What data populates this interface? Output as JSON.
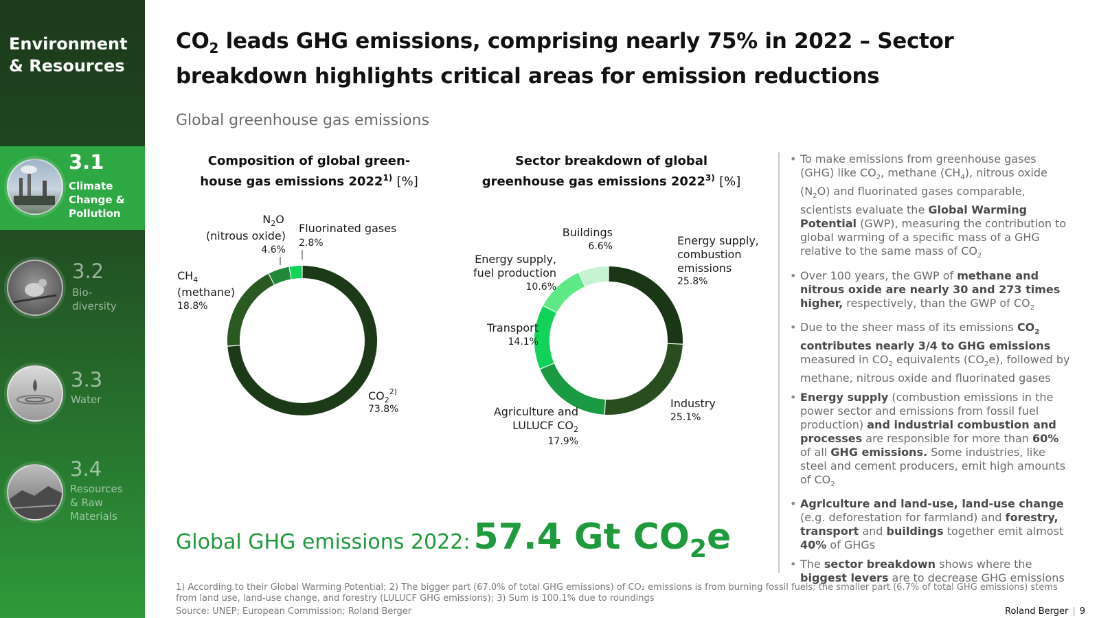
{
  "sidebar": {
    "title": "Environment\n& Resources",
    "items": [
      {
        "num": "3.1",
        "label": "Climate\nChange &\nPollution",
        "active": true
      },
      {
        "num": "3.2",
        "label": "Bio-\ndiversity",
        "active": false
      },
      {
        "num": "3.3",
        "label": "Water",
        "active": false
      },
      {
        "num": "3.4",
        "label": "Resources\n& Raw\nMaterials",
        "active": false
      }
    ]
  },
  "headline": {
    "part1": "CO",
    "sub": "2",
    "part2": " leads GHG emissions, comprising nearly 75% in 2022 – Sector breakdown highlights critical areas for emission reductions"
  },
  "subtitle": "Global greenhouse gas emissions",
  "chart_data": [
    {
      "type": "pie",
      "title_line1": "Composition of global green-",
      "title_line2": "house gas emissions 2022",
      "title_sup": "1)",
      "unit": "[%]",
      "categories": [
        "CO2",
        "CH4 (methane)",
        "N2O (nitrous oxide)",
        "Fluorinated gases"
      ],
      "values": [
        73.8,
        18.8,
        4.6,
        2.8
      ],
      "colors": [
        "#1c3a17",
        "#2a5a22",
        "#22883a",
        "#12d35a"
      ],
      "labels": {
        "co2": {
          "name": "CO",
          "sub": "2",
          "sup": "2)",
          "value": "73.8%"
        },
        "ch4": {
          "name": "CH",
          "sub": "4",
          "paren": "(methane)",
          "value": "18.8%"
        },
        "n2o": {
          "name1": "N",
          "sub": "2",
          "name2": "O",
          "paren": "(nitrous oxide)",
          "value": "4.6%"
        },
        "fgas": {
          "name": "Fluorinated gases",
          "value": "2.8%"
        }
      }
    },
    {
      "type": "pie",
      "title_line1": "Sector breakdown of global",
      "title_line2": "greenhouse gas emissions 2022",
      "title_sup": "3)",
      "unit": "[%]",
      "categories": [
        "Energy supply, combustion emissions",
        "Industry",
        "Agriculture and LULUCF CO2",
        "Transport",
        "Energy supply, fuel production",
        "Buildings"
      ],
      "values": [
        25.8,
        25.1,
        17.9,
        14.1,
        10.6,
        6.6
      ],
      "colors": [
        "#1a3616",
        "#2a4d1f",
        "#1a9a42",
        "#12d35a",
        "#5ee886",
        "#c7f3d4"
      ],
      "labels": {
        "energy_comb": {
          "line1": "Energy supply,",
          "line2": "combustion",
          "line3": "emissions",
          "value": "25.8%"
        },
        "industry": {
          "name": "Industry",
          "value": "25.1%"
        },
        "agri": {
          "line1": "Agriculture and",
          "line2a": "LULUCF CO",
          "sub": "2",
          "value": "17.9%"
        },
        "transport": {
          "name": "Transport",
          "value": "14.1%"
        },
        "energy_fuel": {
          "line1": "Energy supply,",
          "line2": "fuel production",
          "value": "10.6%"
        },
        "buildings": {
          "name": "Buildings",
          "value": "6.6%"
        }
      }
    }
  ],
  "total": {
    "label": "Global GHG emissions 2022:",
    "value": "57.4 Gt CO",
    "sub": "2",
    "suffix": "e"
  },
  "bullets": [
    "To make emissions from greenhouse gases (GHG) like CO<sub>2</sub>, methane (CH<sub>4</sub>), nitrous oxide (N<sub>2</sub>O) and fluorinated gases comparable, scientists evaluate the <strong>Global Warming Potential</strong> (GWP), measuring the contribution to global warming of a specific mass of a GHG relative to the same mass of CO<sub>2</sub>",
    "Over 100 years, the GWP of <strong>methane and nitrous oxide are nearly 30 and 273 times higher,</strong> respectively, than the GWP of CO<sub>2</sub>",
    "Due to the sheer mass of its emissions <strong>CO<sub>2</sub> contributes nearly 3/4 to GHG emissions</strong> measured in CO<sub>2</sub> equivalents (CO<sub>2</sub>e), followed by methane, nitrous oxide and fluorinated gases",
    "<strong>Energy supply</strong> (combustion emissions in the power sector and emissions from fossil fuel production) <strong>and industrial combustion and processes</strong> are responsible for more than <strong>60%</strong> of all <strong>GHG emissions.</strong> Some industries, like steel and cement producers, emit high amounts of CO<sub>2</sub>",
    "<strong>Agriculture and land-use, land-use change</strong> (e.g. deforestation for farmland) and <strong>forestry, transport</strong> and <strong>buildings</strong> together emit almost <strong>40%</strong> of GHGs",
    "The <strong>sector breakdown</strong> shows where the <strong>biggest levers</strong> are to decrease GHG emissions"
  ],
  "footnote": "1) According to their Global Warming Potential; 2) The bigger part (67.0% of total GHG emissions) of CO₂ emissions is from burning fossil fuels; the smaller part (6.7% of total GHG emissions) stems from land use, land-use change, and forestry (LULUCF GHG emissions); 3) Sum is 100.1% due to roundings",
  "source": "Source: UNEP; European Commission; Roland Berger",
  "brand": {
    "name": "Roland Berger",
    "page": "9"
  }
}
